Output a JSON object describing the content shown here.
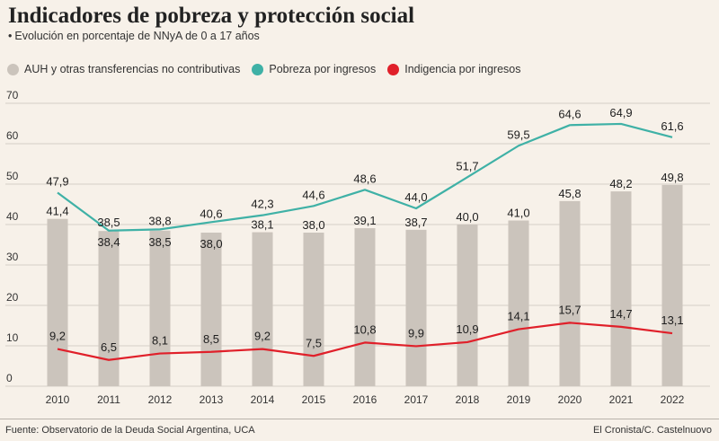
{
  "title": "Indicadores de pobreza y protección social",
  "subtitle": "Evolución en porcentaje de NNyA de 0 a 17 años",
  "subtitle_bullet": "•",
  "legend": [
    {
      "label": "AUH y otras transferencias no contributivas",
      "color": "#cbc4bc"
    },
    {
      "label": "Pobreza por ingresos",
      "color": "#3fb1a6"
    },
    {
      "label": "Indigencia por ingresos",
      "color": "#e0202a"
    }
  ],
  "footer": {
    "source": "Fuente: Observatorio de la Deuda Social Argentina, UCA",
    "credit": "El Cronista/C. Castelnuovo"
  },
  "chart_data": {
    "type": "bar+line",
    "categories": [
      "2010",
      "2011",
      "2012",
      "2013",
      "2014",
      "2015",
      "2016",
      "2017",
      "2018",
      "2019",
      "2020",
      "2021",
      "2022"
    ],
    "ylim": [
      0,
      70
    ],
    "yticks": [
      0,
      10,
      20,
      30,
      40,
      50,
      60,
      70
    ],
    "grid": true,
    "series": [
      {
        "name": "AUH y otras transferencias no contributivas",
        "kind": "bar",
        "color": "#cbc4bc",
        "values": [
          41.4,
          38.4,
          38.5,
          38.0,
          38.1,
          38.0,
          39.1,
          38.7,
          40.0,
          41.0,
          45.8,
          48.2,
          49.8
        ],
        "labels": [
          "41,4",
          "38,4",
          "38,5",
          "38,0",
          "38,1",
          "38,0",
          "39,1",
          "38,7",
          "40,0",
          "41,0",
          "45,8",
          "48,2",
          "49,8"
        ]
      },
      {
        "name": "Pobreza por ingresos",
        "kind": "line",
        "color": "#3fb1a6",
        "values": [
          47.9,
          38.5,
          38.8,
          40.6,
          42.3,
          44.6,
          48.6,
          44.0,
          51.7,
          59.5,
          64.6,
          64.9,
          61.6
        ],
        "labels": [
          "47,9",
          "38,5",
          "38,8",
          "40,6",
          "42,3",
          "44,6",
          "48,6",
          "44,0",
          "51,7",
          "59,5",
          "64,6",
          "64,9",
          "61,6"
        ]
      },
      {
        "name": "Indigencia por ingresos",
        "kind": "line",
        "color": "#e0202a",
        "values": [
          9.2,
          6.5,
          8.1,
          8.5,
          9.2,
          7.5,
          10.8,
          9.9,
          10.9,
          14.1,
          15.7,
          14.7,
          13.1
        ],
        "labels": [
          "9,2",
          "6,5",
          "8,1",
          "8,5",
          "9,2",
          "7,5",
          "10,8",
          "9,9",
          "10,9",
          "14,1",
          "15,7",
          "14,7",
          "13,1"
        ]
      }
    ]
  }
}
